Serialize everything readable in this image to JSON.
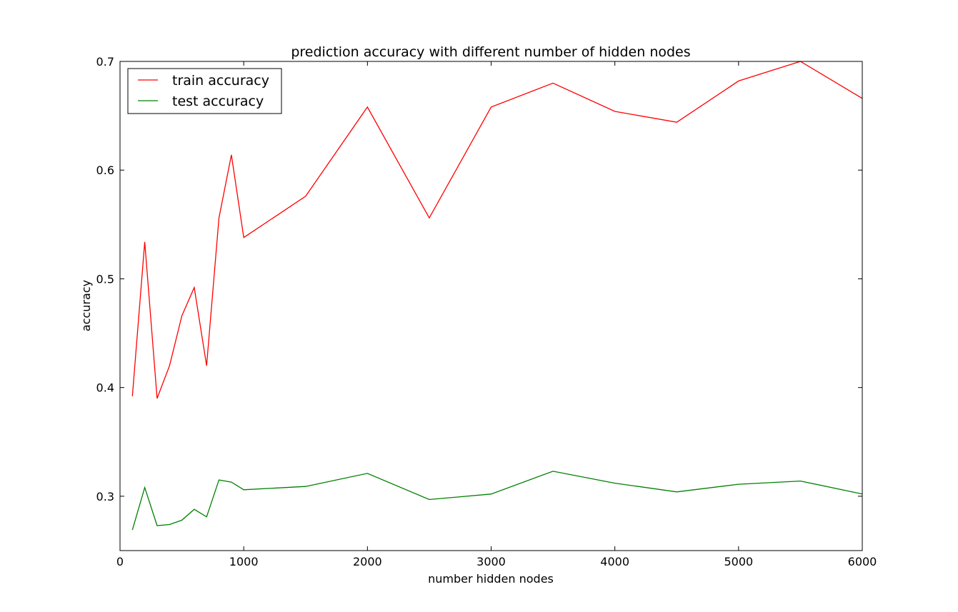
{
  "chart_data": {
    "type": "line",
    "title": "prediction accuracy with different number of hidden nodes",
    "xlabel": "number hidden nodes",
    "ylabel": "accuracy",
    "xlim": [
      0,
      6000
    ],
    "ylim": [
      0.25,
      0.7
    ],
    "xticks": [
      0,
      1000,
      2000,
      3000,
      4000,
      5000,
      6000
    ],
    "xtick_labels": [
      "0",
      "1000",
      "2000",
      "3000",
      "4000",
      "5000",
      "6000"
    ],
    "yticks": [
      0.3,
      0.4,
      0.5,
      0.6,
      0.7
    ],
    "ytick_labels": [
      "0.3",
      "0.4",
      "0.5",
      "0.6",
      "0.7"
    ],
    "grid": false,
    "legend_position": "top-left",
    "x": [
      100,
      200,
      300,
      400,
      500,
      600,
      700,
      800,
      900,
      1000,
      1500,
      2000,
      2500,
      3000,
      3500,
      4000,
      4500,
      5000,
      5500,
      6000
    ],
    "series": [
      {
        "name": "train accuracy",
        "color": "#ff0000",
        "values": [
          0.392,
          0.534,
          0.39,
          0.42,
          0.466,
          0.492,
          0.42,
          0.556,
          0.614,
          0.538,
          0.576,
          0.658,
          0.556,
          0.658,
          0.68,
          0.654,
          0.644,
          0.682,
          0.7,
          0.666
        ]
      },
      {
        "name": "test accuracy",
        "color": "#008000",
        "values": [
          0.269,
          0.308,
          0.273,
          0.274,
          0.278,
          0.288,
          0.281,
          0.315,
          0.313,
          0.306,
          0.309,
          0.321,
          0.297,
          0.302,
          0.323,
          0.312,
          0.304,
          0.311,
          0.314,
          0.302
        ]
      }
    ]
  }
}
